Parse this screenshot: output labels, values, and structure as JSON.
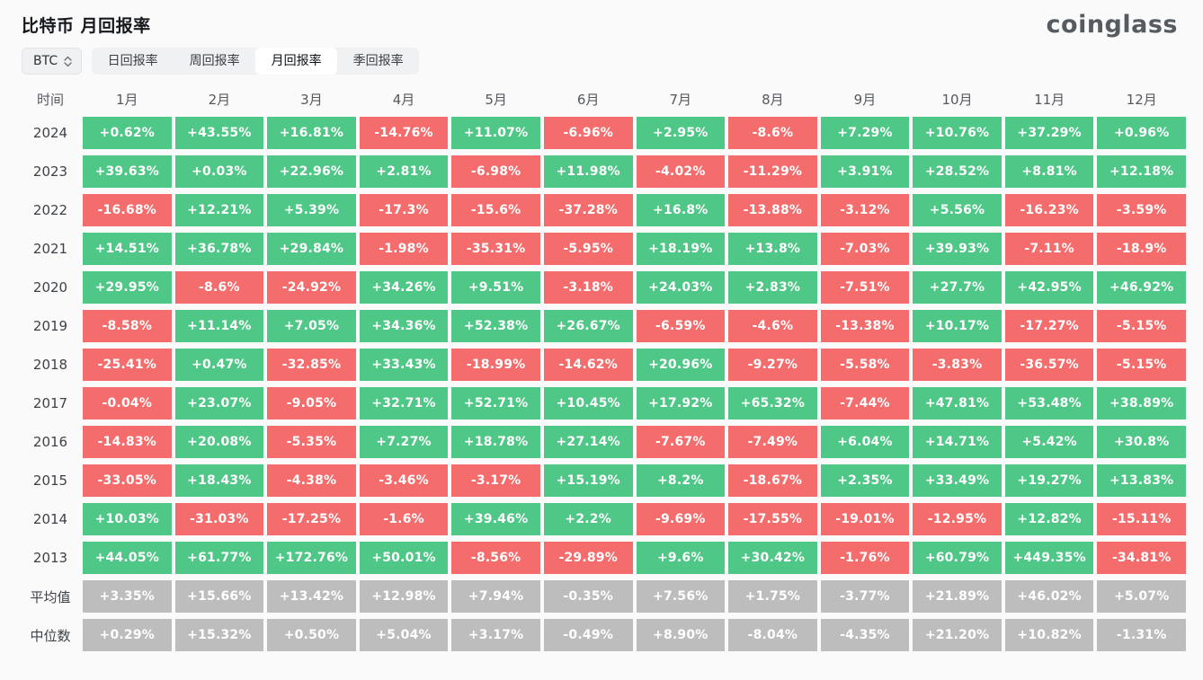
{
  "page": {
    "title": "比特币 月回报率",
    "logo": "coinglass"
  },
  "controls": {
    "symbol_select": {
      "value": "BTC"
    },
    "tabs": [
      {
        "key": "daily-return",
        "label": "日回报率",
        "active": false
      },
      {
        "key": "weekly-return",
        "label": "周回报率",
        "active": false
      },
      {
        "key": "monthly-return",
        "label": "月回报率",
        "active": true
      },
      {
        "key": "quarterly-return",
        "label": "季回报率",
        "active": false
      }
    ]
  },
  "colors": {
    "positive": "#4fc786",
    "negative": "#f56c6c",
    "summary": "#bdbdbd",
    "background": "#fafafa"
  },
  "chart_data": {
    "type": "heatmap",
    "title": "比特币 月回报率",
    "row_header": "时间",
    "columns": [
      "1月",
      "2月",
      "3月",
      "4月",
      "5月",
      "6月",
      "7月",
      "8月",
      "9月",
      "10月",
      "11月",
      "12月"
    ],
    "rows": [
      {
        "label": "2024",
        "type": "year",
        "values": [
          "+0.62%",
          "+43.55%",
          "+16.81%",
          "-14.76%",
          "+11.07%",
          "-6.96%",
          "+2.95%",
          "-8.6%",
          "+7.29%",
          "+10.76%",
          "+37.29%",
          "+0.96%"
        ]
      },
      {
        "label": "2023",
        "type": "year",
        "values": [
          "+39.63%",
          "+0.03%",
          "+22.96%",
          "+2.81%",
          "-6.98%",
          "+11.98%",
          "-4.02%",
          "-11.29%",
          "+3.91%",
          "+28.52%",
          "+8.81%",
          "+12.18%"
        ]
      },
      {
        "label": "2022",
        "type": "year",
        "values": [
          "-16.68%",
          "+12.21%",
          "+5.39%",
          "-17.3%",
          "-15.6%",
          "-37.28%",
          "+16.8%",
          "-13.88%",
          "-3.12%",
          "+5.56%",
          "-16.23%",
          "-3.59%"
        ]
      },
      {
        "label": "2021",
        "type": "year",
        "values": [
          "+14.51%",
          "+36.78%",
          "+29.84%",
          "-1.98%",
          "-35.31%",
          "-5.95%",
          "+18.19%",
          "+13.8%",
          "-7.03%",
          "+39.93%",
          "-7.11%",
          "-18.9%"
        ]
      },
      {
        "label": "2020",
        "type": "year",
        "values": [
          "+29.95%",
          "-8.6%",
          "-24.92%",
          "+34.26%",
          "+9.51%",
          "-3.18%",
          "+24.03%",
          "+2.83%",
          "-7.51%",
          "+27.7%",
          "+42.95%",
          "+46.92%"
        ]
      },
      {
        "label": "2019",
        "type": "year",
        "values": [
          "-8.58%",
          "+11.14%",
          "+7.05%",
          "+34.36%",
          "+52.38%",
          "+26.67%",
          "-6.59%",
          "-4.6%",
          "-13.38%",
          "+10.17%",
          "-17.27%",
          "-5.15%"
        ]
      },
      {
        "label": "2018",
        "type": "year",
        "values": [
          "-25.41%",
          "+0.47%",
          "-32.85%",
          "+33.43%",
          "-18.99%",
          "-14.62%",
          "+20.96%",
          "-9.27%",
          "-5.58%",
          "-3.83%",
          "-36.57%",
          "-5.15%"
        ]
      },
      {
        "label": "2017",
        "type": "year",
        "values": [
          "-0.04%",
          "+23.07%",
          "-9.05%",
          "+32.71%",
          "+52.71%",
          "+10.45%",
          "+17.92%",
          "+65.32%",
          "-7.44%",
          "+47.81%",
          "+53.48%",
          "+38.89%"
        ]
      },
      {
        "label": "2016",
        "type": "year",
        "values": [
          "-14.83%",
          "+20.08%",
          "-5.35%",
          "+7.27%",
          "+18.78%",
          "+27.14%",
          "-7.67%",
          "-7.49%",
          "+6.04%",
          "+14.71%",
          "+5.42%",
          "+30.8%"
        ]
      },
      {
        "label": "2015",
        "type": "year",
        "values": [
          "-33.05%",
          "+18.43%",
          "-4.38%",
          "-3.46%",
          "-3.17%",
          "+15.19%",
          "+8.2%",
          "-18.67%",
          "+2.35%",
          "+33.49%",
          "+19.27%",
          "+13.83%"
        ]
      },
      {
        "label": "2014",
        "type": "year",
        "values": [
          "+10.03%",
          "-31.03%",
          "-17.25%",
          "-1.6%",
          "+39.46%",
          "+2.2%",
          "-9.69%",
          "-17.55%",
          "-19.01%",
          "-12.95%",
          "+12.82%",
          "-15.11%"
        ]
      },
      {
        "label": "2013",
        "type": "year",
        "values": [
          "+44.05%",
          "+61.77%",
          "+172.76%",
          "+50.01%",
          "-8.56%",
          "-29.89%",
          "+9.6%",
          "+30.42%",
          "-1.76%",
          "+60.79%",
          "+449.35%",
          "-34.81%"
        ]
      },
      {
        "label": "平均值",
        "type": "summary",
        "values": [
          "+3.35%",
          "+15.66%",
          "+13.42%",
          "+12.98%",
          "+7.94%",
          "-0.35%",
          "+7.56%",
          "+1.75%",
          "-3.77%",
          "+21.89%",
          "+46.02%",
          "+5.07%"
        ]
      },
      {
        "label": "中位数",
        "type": "summary",
        "values": [
          "+0.29%",
          "+15.32%",
          "+0.50%",
          "+5.04%",
          "+3.17%",
          "-0.49%",
          "+8.90%",
          "-8.04%",
          "-4.35%",
          "+21.20%",
          "+10.82%",
          "-1.31%"
        ]
      }
    ]
  }
}
